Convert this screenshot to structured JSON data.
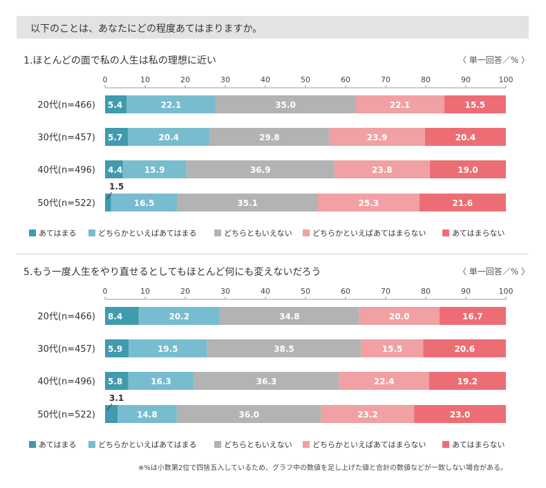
{
  "question": "以下のことは、あなたにどの程度あてはまりますか。",
  "footnote": "※%は小数第2位で四捨五入しているため、グラフ中の数値を足し上げた値と合計の数値などが一致しない場合がある。",
  "colors": [
    "#3f9bad",
    "#77bccf",
    "#b3b3b3",
    "#f1a0a3",
    "#ec6e74"
  ],
  "chart_data": [
    {
      "type": "bar",
      "orientation": "horizontal-stacked",
      "title": "1.ほとんどの面で私の人生は私の理想に近い",
      "unit": "〈 単一回答／% 〉",
      "xlim": [
        0,
        100
      ],
      "ticks": [
        0,
        10,
        20,
        30,
        40,
        50,
        60,
        70,
        80,
        90,
        100
      ],
      "categories": [
        "20代(n=466)",
        "30代(n=457)",
        "40代(n=496)",
        "50代(n=522)"
      ],
      "series": [
        {
          "name": "あてはまる",
          "values": [
            5.4,
            5.7,
            4.4,
            1.5
          ]
        },
        {
          "name": "どちらかといえばあてはまる",
          "values": [
            22.1,
            20.4,
            15.9,
            16.5
          ]
        },
        {
          "name": "どちらともいえない",
          "values": [
            35.0,
            29.8,
            36.9,
            35.1
          ]
        },
        {
          "name": "どちらかといえばあてはまらない",
          "values": [
            22.1,
            23.9,
            23.8,
            25.3
          ]
        },
        {
          "name": "あてはまらない",
          "values": [
            15.5,
            20.4,
            19.0,
            21.6
          ]
        }
      ],
      "labels": [
        [
          "5.4",
          "22.1",
          "35.0",
          "22.1",
          "15.5"
        ],
        [
          "5.7",
          "20.4",
          "29.8",
          "23.9",
          "20.4"
        ],
        [
          "4.4",
          "15.9",
          "36.9",
          "23.8",
          "19.0"
        ],
        [
          "1.5",
          "16.5",
          "35.1",
          "25.3",
          "21.6"
        ]
      ],
      "legend_position": "bottom"
    },
    {
      "type": "bar",
      "orientation": "horizontal-stacked",
      "title": "5.もう一度人生をやり直せるとしてもほとんど何にも変えないだろう",
      "unit": "〈 単一回答／% 〉",
      "xlim": [
        0,
        100
      ],
      "ticks": [
        0,
        10,
        20,
        30,
        40,
        50,
        60,
        70,
        80,
        90,
        100
      ],
      "categories": [
        "20代(n=466)",
        "30代(n=457)",
        "40代(n=496)",
        "50代(n=522)"
      ],
      "series": [
        {
          "name": "あてはまる",
          "values": [
            8.4,
            5.9,
            5.8,
            3.1
          ]
        },
        {
          "name": "どちらかといえばあてはまる",
          "values": [
            20.2,
            19.5,
            16.3,
            14.8
          ]
        },
        {
          "name": "どちらともいえない",
          "values": [
            34.8,
            38.5,
            36.3,
            36.0
          ]
        },
        {
          "name": "どちらかといえばあてはまらない",
          "values": [
            20.0,
            15.5,
            22.4,
            23.2
          ]
        },
        {
          "name": "あてはまらない",
          "values": [
            16.7,
            20.6,
            19.2,
            23.0
          ]
        }
      ],
      "labels": [
        [
          "8.4",
          "20.2",
          "34.8",
          "20.0",
          "16.7"
        ],
        [
          "5.9",
          "19.5",
          "38.5",
          "15.5",
          "20.6"
        ],
        [
          "5.8",
          "16.3",
          "36.3",
          "22.4",
          "19.2"
        ],
        [
          "3.1",
          "14.8",
          "36.0",
          "23.2",
          "23.0"
        ]
      ],
      "legend_position": "bottom"
    }
  ]
}
